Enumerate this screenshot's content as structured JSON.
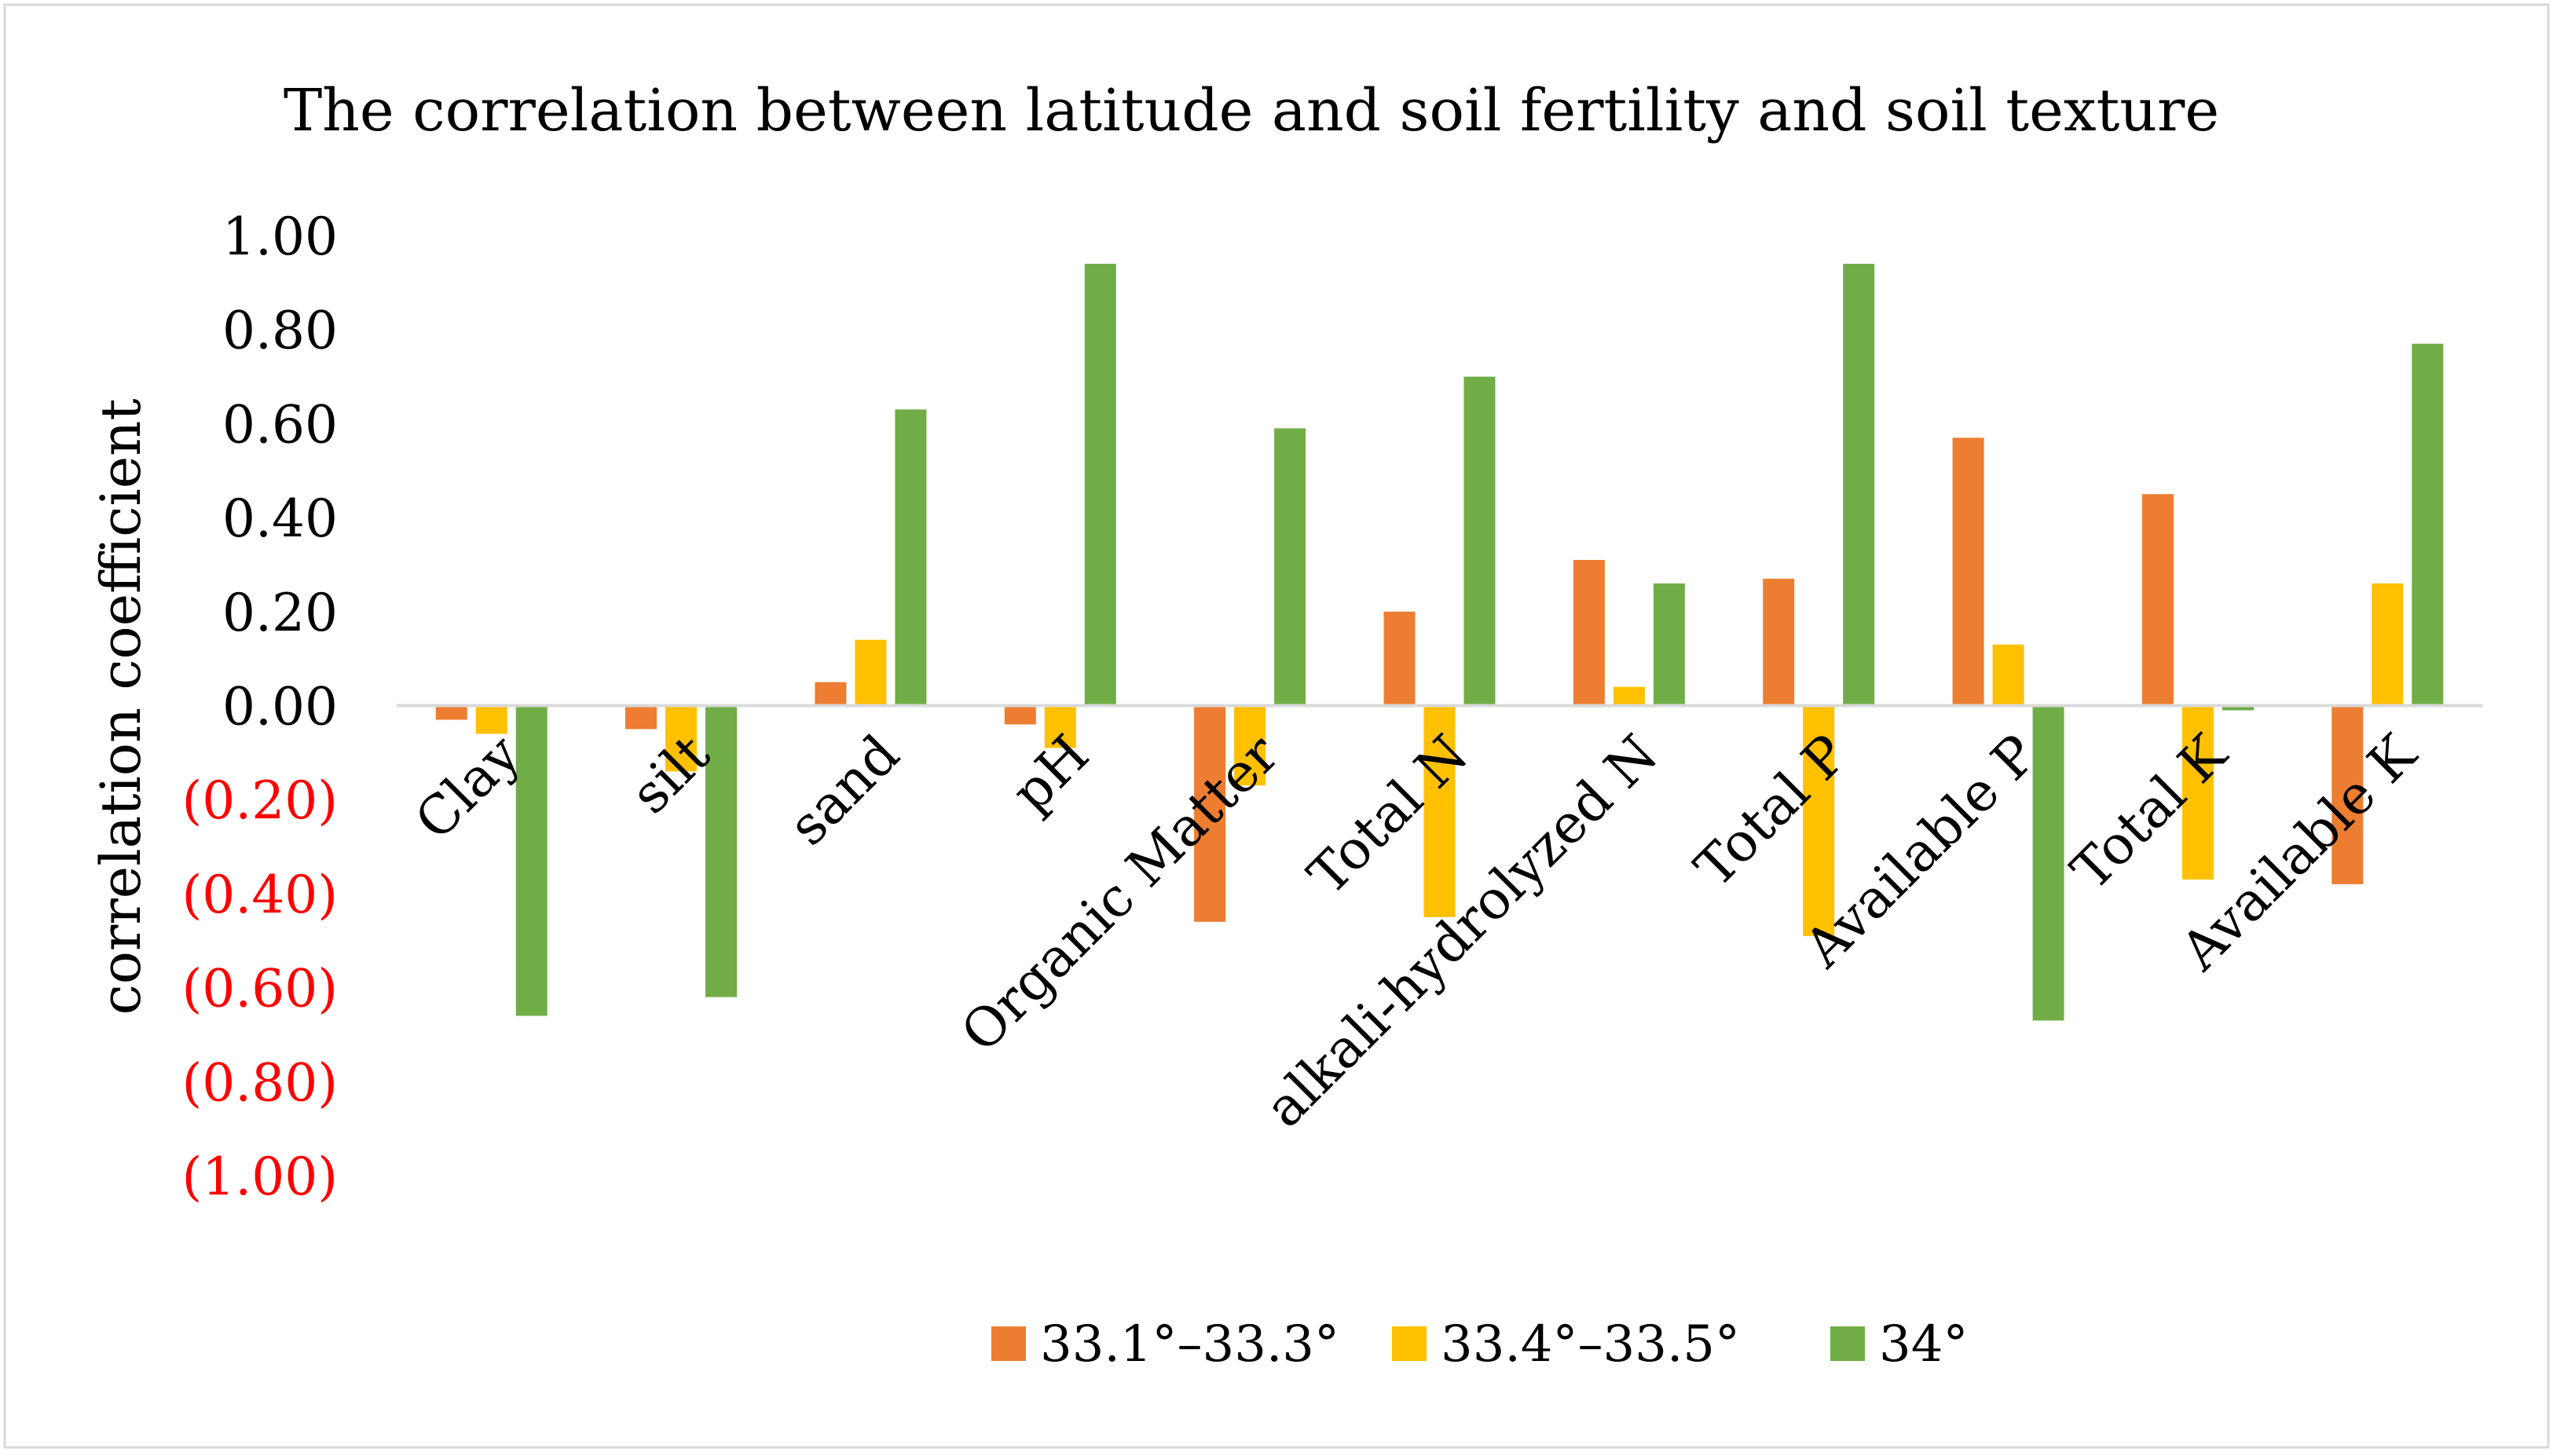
{
  "chart_data": {
    "type": "bar",
    "title": "The correlation between latitude and soil fertility and soil texture",
    "xlabel": "",
    "ylabel": "correlation coefficient",
    "ylim": [
      -1.0,
      1.0
    ],
    "yticks": [
      {
        "value": 1.0,
        "label": "1.00",
        "negative": false
      },
      {
        "value": 0.8,
        "label": "0.80",
        "negative": false
      },
      {
        "value": 0.6,
        "label": "0.60",
        "negative": false
      },
      {
        "value": 0.4,
        "label": "0.40",
        "negative": false
      },
      {
        "value": 0.2,
        "label": "0.20",
        "negative": false
      },
      {
        "value": 0.0,
        "label": "0.00",
        "negative": false
      },
      {
        "value": -0.2,
        "label": "(0.20)",
        "negative": true
      },
      {
        "value": -0.4,
        "label": "(0.40)",
        "negative": true
      },
      {
        "value": -0.6,
        "label": "(0.60)",
        "negative": true
      },
      {
        "value": -0.8,
        "label": "(0.80)",
        "negative": true
      },
      {
        "value": -1.0,
        "label": "(1.00)",
        "negative": true
      }
    ],
    "categories": [
      "Clay",
      "silt",
      "sand",
      "pH",
      "Organic Matter",
      "Total N",
      "alkali-hydrolyzed N",
      "Total P",
      "Available P",
      "Total K",
      "Available K"
    ],
    "series": [
      {
        "name": "33.1°–33.3°",
        "color": "#ED7D31",
        "values": [
          -0.03,
          -0.05,
          0.05,
          -0.04,
          -0.46,
          0.2,
          0.31,
          0.27,
          0.57,
          0.45,
          -0.38
        ]
      },
      {
        "name": "33.4°–33.5°",
        "color": "#FFC000",
        "values": [
          -0.06,
          -0.14,
          0.14,
          -0.09,
          -0.17,
          -0.45,
          0.04,
          -0.49,
          0.13,
          -0.37,
          0.26
        ]
      },
      {
        "name": "34°",
        "color": "#70AD47",
        "values": [
          -0.66,
          -0.62,
          0.63,
          0.94,
          0.59,
          0.7,
          0.26,
          0.94,
          -0.67,
          -0.01,
          0.77
        ]
      }
    ],
    "legend_position": "bottom",
    "grid": false
  },
  "colors": {
    "negative_tick": "#FF0000",
    "text": "#000000",
    "axis": "#D9D9D9",
    "frame": "#D9D9D9"
  }
}
